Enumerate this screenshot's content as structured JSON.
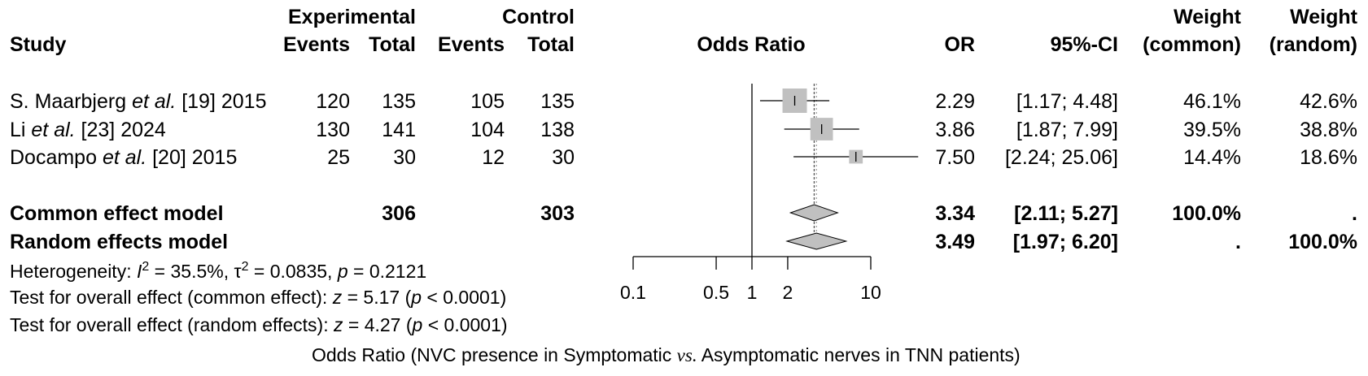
{
  "chart_data": {
    "type": "forest",
    "x_scale": "log",
    "xlim": [
      0.1,
      10
    ],
    "xticks": [
      0.1,
      0.5,
      1,
      2,
      10
    ],
    "xtick_labels": [
      "0.1",
      "0.5",
      "1",
      "2",
      "10"
    ],
    "xlabel": "Odds Ratio (NVC presence in Symptomatic vs. Asymptomatic nerves in TNN patients)",
    "xlabel_parts": [
      "Odds Ratio (NVC presence in Symptomatic ",
      "vs.",
      " Asymptomatic nerves in TNN patients)"
    ],
    "header": {
      "group1": "Experimental",
      "group2": "Control",
      "study": "Study",
      "events1": "Events",
      "total1": "Total",
      "events2": "Events",
      "total2": "Total",
      "plot": "Odds Ratio",
      "or": "OR",
      "ci": "95%-CI",
      "weight": "Weight",
      "w_common": "(common)",
      "w_random": "(random)"
    },
    "studies": [
      {
        "author": "S. Maarbjerg ",
        "etal": "et al.",
        "ref": " [19] 2015",
        "e1": "120",
        "t1": "135",
        "e2": "105",
        "t2": "135",
        "or": 2.29,
        "lower": 1.17,
        "upper": 4.48,
        "or_text": "2.29",
        "ci_text": "[1.17;  4.48]",
        "w_common": "46.1%",
        "w_random": "42.6%"
      },
      {
        "author": "Li ",
        "etal": "et al.",
        "ref": " [23] 2024",
        "e1": "130",
        "t1": "141",
        "e2": "104",
        "t2": "138",
        "or": 3.86,
        "lower": 1.87,
        "upper": 7.99,
        "or_text": "3.86",
        "ci_text": "[1.87;  7.99]",
        "w_common": "39.5%",
        "w_random": "38.8%"
      },
      {
        "author": "Docampo ",
        "etal": "et al.",
        "ref": " [20] 2015",
        "e1": "25",
        "t1": "30",
        "e2": "12",
        "t2": "30",
        "or": 7.5,
        "lower": 2.24,
        "upper": 25.06,
        "or_text": "7.50",
        "ci_text": "[2.24; 25.06]",
        "w_common": "14.4%",
        "w_random": "18.6%"
      }
    ],
    "common_model": {
      "label": "Common effect model",
      "t1": "306",
      "t2": "303",
      "or": 3.34,
      "lower": 2.11,
      "upper": 5.27,
      "or_text": "3.34",
      "ci_text": "[2.11;  5.27]",
      "w_common": "100.0%",
      "w_random": "."
    },
    "random_model": {
      "label": "Random effects model",
      "or": 3.49,
      "lower": 1.97,
      "upper": 6.2,
      "or_text": "3.49",
      "ci_text": "[1.97;  6.20]",
      "w_common": ".",
      "w_random": "100.0%"
    },
    "footnotes": {
      "heterogeneity": "Heterogeneity: I² = 35.5%, τ² = 0.0835, p = 0.2121",
      "test_common": "Test for overall effect (common effect): z = 5.17 (p < 0.0001)",
      "test_random": "Test for overall effect (random effects): z = 4.27 (p < 0.0001)"
    },
    "colors": {
      "box": "#c0c0c0",
      "diamond": "#c0c0c0",
      "line": "#000000"
    }
  }
}
